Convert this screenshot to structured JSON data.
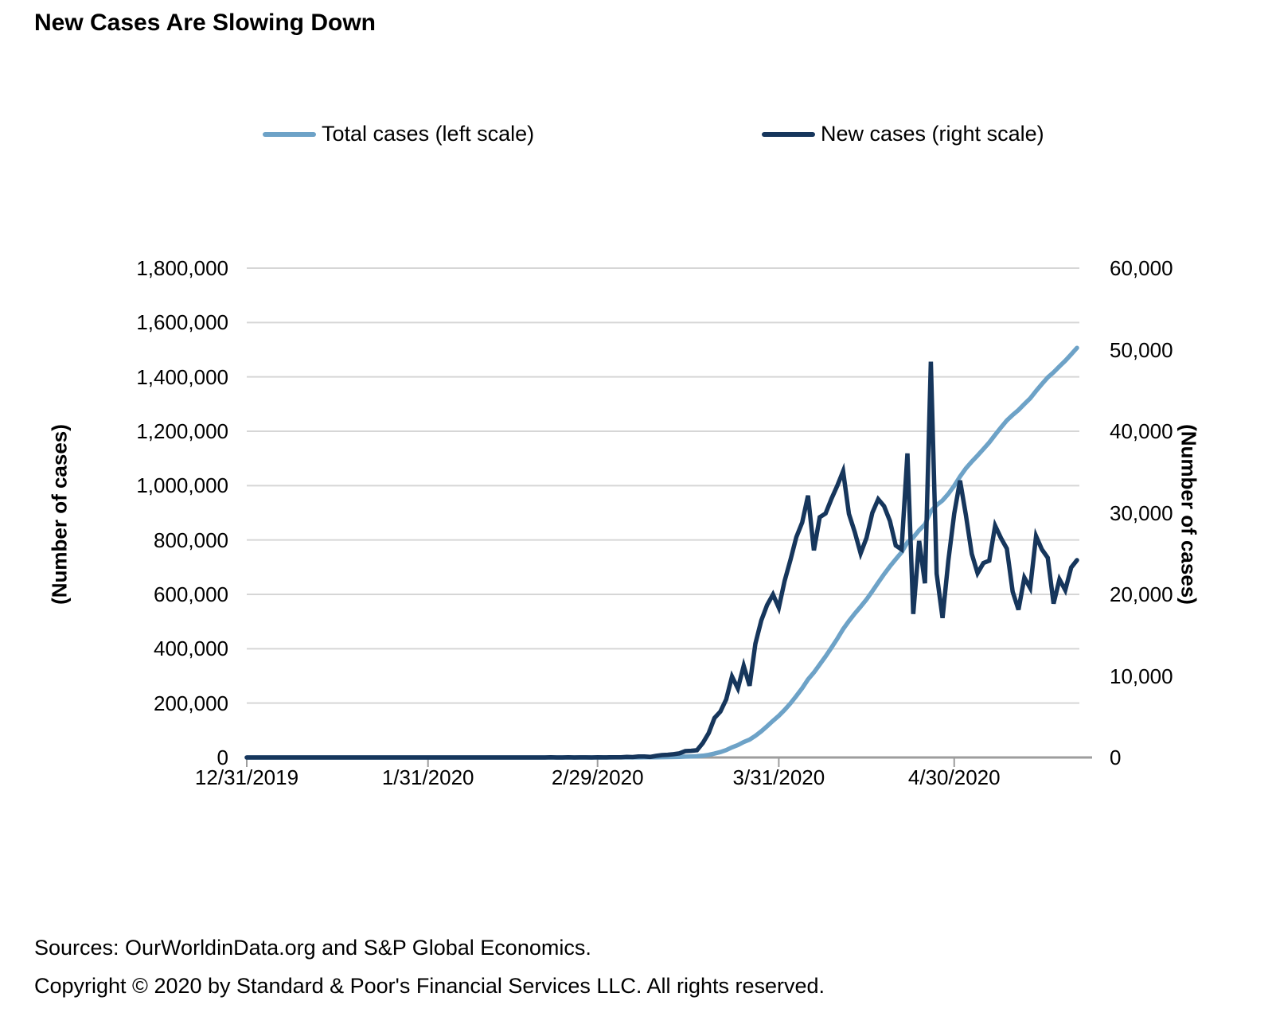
{
  "title": "New Cases Are Slowing Down",
  "legend": [
    {
      "label": "Total cases (left scale)",
      "color": "#6DA2C7"
    },
    {
      "label": "New cases (right scale)",
      "color": "#16365C"
    }
  ],
  "left_axis": {
    "title": "(Number of cases)",
    "tick_labels": [
      "0",
      "200,000",
      "400,000",
      "600,000",
      "800,000",
      "1,000,000",
      "1,200,000",
      "1,400,000",
      "1,600,000",
      "1,800,000"
    ]
  },
  "right_axis": {
    "title": "(Number of cases)",
    "tick_labels": [
      "0",
      "10,000",
      "20,000",
      "30,000",
      "40,000",
      "50,000",
      "60,000"
    ]
  },
  "x_axis": {
    "tick_labels": [
      "12/31/2019",
      "1/31/2020",
      "2/29/2020",
      "3/31/2020",
      "4/30/2020"
    ]
  },
  "footer": {
    "sources": "Sources: OurWorldinData.org and S&P Global Economics.",
    "copyright": "Copyright © 2020 by Standard & Poor's Financial Services LLC. All rights reserved."
  },
  "colors": {
    "gridline": "#d6d6d6",
    "axis": "#9d9d9d",
    "total_cases": "#6DA2C7",
    "new_cases": "#16365C"
  },
  "chart_data": {
    "type": "line",
    "title": "New Cases Are Slowing Down",
    "grid": "horizontal",
    "legend_position": "top",
    "left_ylim": [
      0,
      1800000
    ],
    "right_ylim": [
      0,
      60000
    ],
    "left_ylabel": "(Number of cases)",
    "right_ylabel": "(Number of cases)",
    "x_tick_labels": [
      "12/31/2019",
      "1/31/2020",
      "2/29/2020",
      "3/31/2020",
      "4/30/2020"
    ],
    "x_tick_indices": [
      0,
      31,
      60,
      91,
      121
    ],
    "x": [
      "12/31/2019",
      "1/1/2020",
      "1/2/2020",
      "1/3/2020",
      "1/4/2020",
      "1/5/2020",
      "1/6/2020",
      "1/7/2020",
      "1/8/2020",
      "1/9/2020",
      "1/10/2020",
      "1/11/2020",
      "1/12/2020",
      "1/13/2020",
      "1/14/2020",
      "1/15/2020",
      "1/16/2020",
      "1/17/2020",
      "1/18/2020",
      "1/19/2020",
      "1/20/2020",
      "1/21/2020",
      "1/22/2020",
      "1/23/2020",
      "1/24/2020",
      "1/25/2020",
      "1/26/2020",
      "1/27/2020",
      "1/28/2020",
      "1/29/2020",
      "1/30/2020",
      "1/31/2020",
      "2/1/2020",
      "2/2/2020",
      "2/3/2020",
      "2/4/2020",
      "2/5/2020",
      "2/6/2020",
      "2/7/2020",
      "2/8/2020",
      "2/9/2020",
      "2/10/2020",
      "2/11/2020",
      "2/12/2020",
      "2/13/2020",
      "2/14/2020",
      "2/15/2020",
      "2/16/2020",
      "2/17/2020",
      "2/18/2020",
      "2/19/2020",
      "2/20/2020",
      "2/21/2020",
      "2/22/2020",
      "2/23/2020",
      "2/24/2020",
      "2/25/2020",
      "2/26/2020",
      "2/27/2020",
      "2/28/2020",
      "2/29/2020",
      "3/1/2020",
      "3/2/2020",
      "3/3/2020",
      "3/4/2020",
      "3/5/2020",
      "3/6/2020",
      "3/7/2020",
      "3/8/2020",
      "3/9/2020",
      "3/10/2020",
      "3/11/2020",
      "3/12/2020",
      "3/13/2020",
      "3/14/2020",
      "3/15/2020",
      "3/16/2020",
      "3/17/2020",
      "3/18/2020",
      "3/19/2020",
      "3/20/2020",
      "3/21/2020",
      "3/22/2020",
      "3/23/2020",
      "3/24/2020",
      "3/25/2020",
      "3/26/2020",
      "3/27/2020",
      "3/28/2020",
      "3/29/2020",
      "3/30/2020",
      "3/31/2020",
      "4/1/2020",
      "4/2/2020",
      "4/3/2020",
      "4/4/2020",
      "4/5/2020",
      "4/6/2020",
      "4/7/2020",
      "4/8/2020",
      "4/9/2020",
      "4/10/2020",
      "4/11/2020",
      "4/12/2020",
      "4/13/2020",
      "4/14/2020",
      "4/15/2020",
      "4/16/2020",
      "4/17/2020",
      "4/18/2020",
      "4/19/2020",
      "4/20/2020",
      "4/21/2020",
      "4/22/2020",
      "4/23/2020",
      "4/24/2020",
      "4/25/2020",
      "4/26/2020",
      "4/27/2020",
      "4/28/2020",
      "4/29/2020",
      "4/30/2020",
      "5/1/2020",
      "5/2/2020",
      "5/3/2020",
      "5/4/2020",
      "5/5/2020",
      "5/6/2020",
      "5/7/2020",
      "5/8/2020",
      "5/9/2020",
      "5/10/2020",
      "5/11/2020",
      "5/12/2020",
      "5/13/2020",
      "5/14/2020",
      "5/15/2020",
      "5/16/2020",
      "5/17/2020",
      "5/18/2020",
      "5/19/2020",
      "5/20/2020",
      "5/21/2020"
    ],
    "series": [
      {
        "name": "Total cases (left scale)",
        "axis": "left",
        "color": "#6DA2C7",
        "values": [
          0,
          0,
          0,
          0,
          0,
          0,
          0,
          0,
          0,
          0,
          0,
          0,
          0,
          0,
          0,
          0,
          0,
          0,
          0,
          0,
          0,
          1,
          1,
          1,
          2,
          3,
          5,
          5,
          5,
          5,
          6,
          7,
          8,
          8,
          11,
          11,
          12,
          12,
          12,
          13,
          13,
          13,
          14,
          14,
          15,
          16,
          16,
          16,
          18,
          18,
          18,
          19,
          38,
          38,
          38,
          56,
          60,
          65,
          71,
          75,
          97,
          104,
          128,
          148,
          179,
          247,
          292,
          411,
          525,
          589,
          783,
          1075,
          1403,
          1801,
          2312,
          3089,
          3912,
          4799,
          6565,
          9553,
          14388,
          20020,
          27143,
          37063,
          45522,
          56758,
          65547,
          79510,
          96307,
          115002,
          134981,
          153341,
          174990,
          199232,
          226244,
          255063,
          287168,
          312566,
          342034,
          371955,
          403664,
          436987,
          472085,
          501946,
          529566,
          554589,
          581511,
          611514,
          643181,
          674014,
          703016,
          729011,
          754520,
          791809,
          809397,
          835940,
          857292,
          905821,
          928362,
          945463,
          969595,
          999512,
          1033467,
          1063211,
          1088183,
          1110776,
          1134617,
          1158745,
          1187165,
          1214071,
          1239683,
          1260012,
          1278129,
          1300177,
          1320960,
          1348103,
          1373611,
          1398098,
          1416971,
          1438812,
          1459329,
          1482614,
          1506811
        ]
      },
      {
        "name": "New cases (right scale)",
        "axis": "right",
        "color": "#16365C",
        "values": [
          0,
          0,
          0,
          0,
          0,
          0,
          0,
          0,
          0,
          0,
          0,
          0,
          0,
          0,
          0,
          0,
          0,
          0,
          0,
          0,
          0,
          1,
          0,
          0,
          1,
          1,
          2,
          0,
          0,
          0,
          1,
          1,
          1,
          0,
          3,
          0,
          1,
          0,
          0,
          1,
          0,
          0,
          1,
          0,
          1,
          1,
          0,
          0,
          2,
          0,
          0,
          1,
          19,
          0,
          0,
          18,
          4,
          5,
          6,
          4,
          22,
          7,
          24,
          20,
          31,
          68,
          45,
          119,
          114,
          64,
          194,
          292,
          328,
          398,
          511,
          777,
          823,
          887,
          1766,
          2988,
          4835,
          5632,
          7123,
          9920,
          8459,
          11236,
          8789,
          13963,
          16797,
          18695,
          19979,
          18360,
          21649,
          24242,
          27012,
          28819,
          32105,
          25398,
          29468,
          29921,
          31709,
          33323,
          35098,
          29861,
          27620,
          25023,
          26922,
          30003,
          31667,
          30833,
          29002,
          25995,
          25509,
          37289,
          17588,
          26543,
          21352,
          48529,
          22541,
          17101,
          24132,
          29917,
          33955,
          29744,
          24972,
          22593,
          23841,
          24128,
          28420,
          26906,
          25612,
          20329,
          18117,
          22048,
          20783,
          27143,
          25508,
          24487,
          18873,
          21841,
          20517,
          23285,
          24197
        ]
      }
    ]
  }
}
